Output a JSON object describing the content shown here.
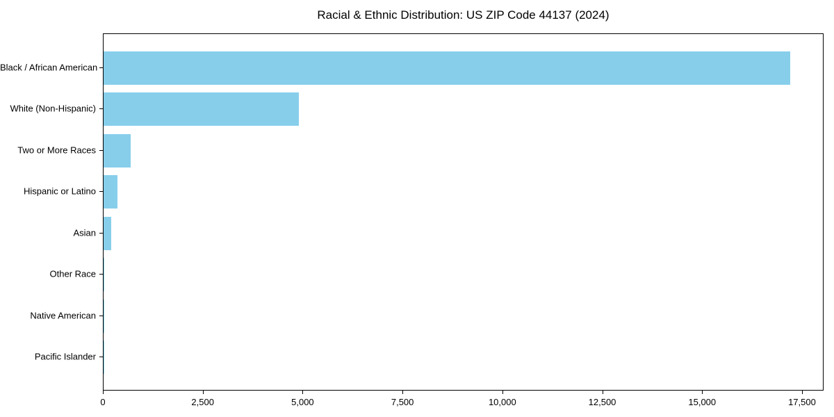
{
  "title": "Racial & Ethnic Distribution: US ZIP Code 44137 (2024)",
  "chart_data": {
    "type": "bar",
    "orientation": "horizontal",
    "title": "Racial & Ethnic Distribution: US ZIP Code 44137 (2024)",
    "xlabel": "",
    "ylabel": "",
    "categories": [
      "Black / African American",
      "White (Non-Hispanic)",
      "Two or More Races",
      "Hispanic or Latino",
      "Asian",
      "Other Race",
      "Native American",
      "Pacific Islander"
    ],
    "values": [
      17180,
      4880,
      670,
      350,
      200,
      17,
      5,
      2
    ],
    "xlim": [
      0,
      18040
    ],
    "x_ticks": [
      0,
      2500,
      5000,
      7500,
      10000,
      12500,
      15000,
      17500
    ],
    "x_tick_labels": [
      "0",
      "2,500",
      "5,000",
      "7,500",
      "10,000",
      "12,500",
      "15,000",
      "17,500"
    ],
    "bar_color": "#87CEEB",
    "grid": false,
    "legend": null
  }
}
